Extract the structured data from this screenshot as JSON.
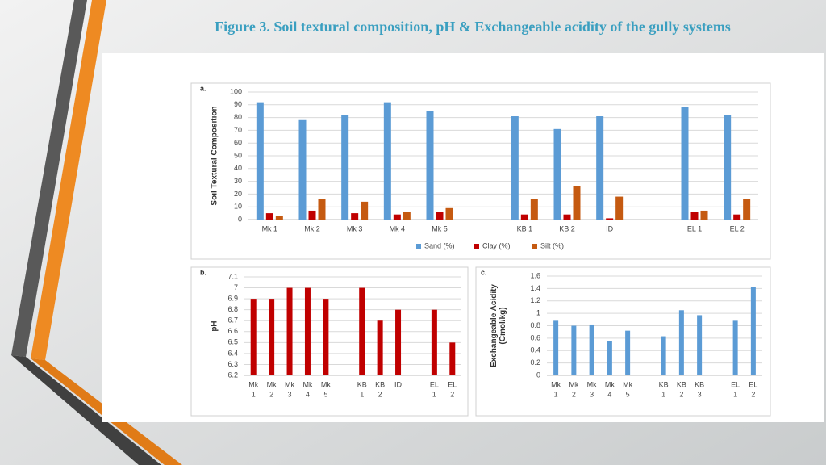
{
  "title": "Figure 3. Soil textural composition, pH & Exchangeable acidity of the gully systems",
  "chart_data": [
    {
      "type": "bar",
      "panel_label": "a.",
      "y_label": [
        "Soil Textural Composition"
      ],
      "categories": [
        [
          "Mk 1"
        ],
        [
          "Mk 2"
        ],
        [
          "Mk 3"
        ],
        [
          "Mk 4"
        ],
        [
          "Mk 5"
        ],
        null,
        [
          "KB 1"
        ],
        [
          "KB 2"
        ],
        [
          "ID"
        ],
        null,
        [
          "EL 1"
        ],
        [
          "EL 2"
        ]
      ],
      "series": [
        {
          "name": "Sand (%)",
          "color": "#5b9bd5",
          "values": [
            92,
            78,
            82,
            92,
            85,
            null,
            81,
            71,
            81,
            null,
            88,
            82
          ]
        },
        {
          "name": "Clay (%)",
          "color": "#c00000",
          "values": [
            5,
            7,
            5,
            4,
            6,
            null,
            4,
            4,
            1,
            null,
            6,
            4
          ]
        },
        {
          "name": "Silt (%)",
          "color": "#c55a11",
          "values": [
            3,
            16,
            14,
            6,
            9,
            null,
            16,
            26,
            18,
            null,
            7,
            16
          ]
        }
      ],
      "ylim": [
        0,
        100
      ],
      "yticks": [
        0,
        10,
        20,
        30,
        40,
        50,
        60,
        70,
        80,
        90,
        100
      ],
      "grid": true,
      "legend": "bottom"
    },
    {
      "type": "bar",
      "panel_label": "b.",
      "y_label": [
        "pH"
      ],
      "categories": [
        [
          "Mk",
          "1"
        ],
        [
          "Mk",
          "2"
        ],
        [
          "Mk",
          "3"
        ],
        [
          "Mk",
          "4"
        ],
        [
          "Mk",
          "5"
        ],
        null,
        [
          "KB",
          "1"
        ],
        [
          "KB",
          "2"
        ],
        [
          "ID"
        ],
        null,
        [
          "EL",
          "1"
        ],
        [
          "EL",
          "2"
        ]
      ],
      "values": [
        6.9,
        6.9,
        7,
        7,
        6.9,
        null,
        7,
        6.7,
        6.8,
        null,
        6.8,
        6.5
      ],
      "color": "#c00000",
      "ylim": [
        6.2,
        7.1
      ],
      "yticks": [
        6.2,
        6.3,
        6.4,
        6.5,
        6.6,
        6.7,
        6.8,
        6.9,
        7,
        7.1
      ],
      "grid": true
    },
    {
      "type": "bar",
      "panel_label": "c.",
      "y_label": [
        "Exchangeable Acidity",
        "(Cmol/kg)"
      ],
      "categories": [
        [
          "Mk",
          "1"
        ],
        [
          "Mk",
          "2"
        ],
        [
          "Mk",
          "3"
        ],
        [
          "Mk",
          "4"
        ],
        [
          "Mk",
          "5"
        ],
        null,
        [
          "KB",
          "1"
        ],
        [
          "KB",
          "2"
        ],
        [
          "KB",
          "3"
        ],
        null,
        [
          "EL",
          "1"
        ],
        [
          "EL",
          "2"
        ]
      ],
      "values": [
        0.88,
        0.8,
        0.82,
        0.55,
        0.72,
        null,
        0.63,
        1.05,
        0.97,
        null,
        0.88,
        1.43
      ],
      "color": "#5b9bd5",
      "ylim": [
        0,
        1.6
      ],
      "yticks": [
        0,
        0.2,
        0.4,
        0.6,
        0.8,
        1,
        1.2,
        1.4,
        1.6
      ],
      "grid": true
    }
  ]
}
